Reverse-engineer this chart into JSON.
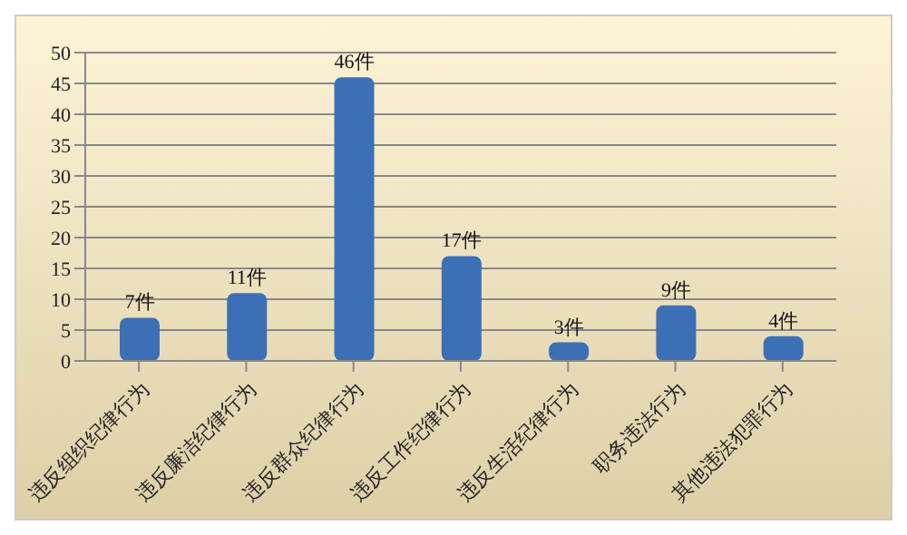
{
  "chart_data": {
    "type": "bar",
    "categories": [
      "违反组织纪律行为",
      "违反廉洁纪律行为",
      "违反群众纪律行为",
      "违反工作纪律行为",
      "违反生活纪律行为",
      "职务违法行为",
      "其他违法犯罪行为"
    ],
    "values": [
      7,
      11,
      46,
      17,
      3,
      9,
      4
    ],
    "value_labels": [
      "7件",
      "11件",
      "46件",
      "17件",
      "3件",
      "9件",
      "4件"
    ],
    "color": "#3d6fb6",
    "ylim": [
      0,
      50
    ],
    "yticks": [
      0,
      5,
      10,
      15,
      20,
      25,
      30,
      35,
      40,
      45,
      50
    ],
    "grid": "y"
  }
}
